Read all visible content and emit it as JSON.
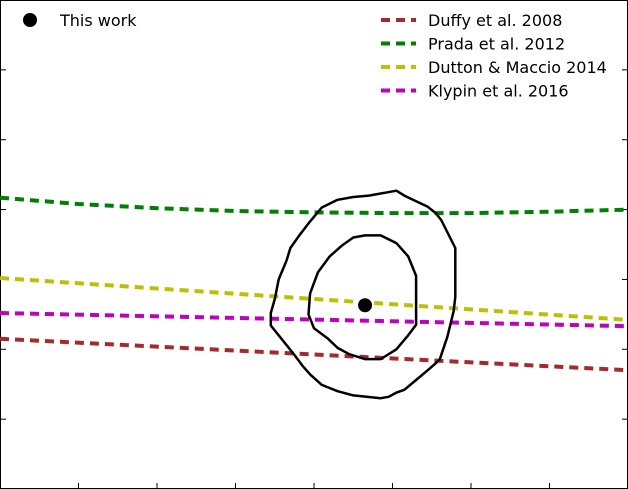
{
  "chart_data": {
    "type": "line",
    "title": "",
    "xlabel": "",
    "ylabel": "",
    "grid": false,
    "legend_placement": "top",
    "x_range": [
      0,
      8
    ],
    "y_range": [
      0,
      7
    ],
    "x_ticks": [
      1,
      2,
      3,
      4,
      5,
      6,
      7
    ],
    "y_ticks": [
      1,
      2,
      3,
      4,
      5,
      6
    ],
    "series": [
      {
        "name": "Duffy et al. 2008",
        "color": "#a52a2a",
        "style": "dashed",
        "x": [
          0,
          8
        ],
        "y": [
          2.15,
          1.7
        ]
      },
      {
        "name": "Prada et al. 2012",
        "color": "#008000",
        "style": "dashed",
        "x": [
          0,
          1,
          2,
          3,
          4,
          5,
          6,
          7,
          8
        ],
        "y": [
          4.17,
          4.08,
          4.02,
          3.98,
          3.96,
          3.95,
          3.95,
          3.97,
          4.0
        ]
      },
      {
        "name": "Dutton & Maccio 2014",
        "color": "#bfbf00",
        "style": "dashed",
        "x": [
          0,
          8
        ],
        "y": [
          3.02,
          2.42
        ]
      },
      {
        "name": "Klypin et al. 2016",
        "color": "#bf00bf",
        "style": "dashed",
        "x": [
          0,
          8
        ],
        "y": [
          2.52,
          2.33
        ]
      }
    ],
    "point": {
      "name": "This work",
      "x": 4.65,
      "y": 2.63,
      "color": "#000000"
    },
    "contours": [
      {
        "level": "inner",
        "x": [
          4.35,
          4.5,
          4.65,
          4.85,
          5.05,
          5.2,
          5.3,
          5.3,
          5.2,
          5.05,
          4.85,
          4.65,
          4.45,
          4.3,
          4.18,
          4.0,
          3.93,
          3.95,
          4.05,
          4.2,
          4.35
        ],
        "y": [
          3.48,
          3.6,
          3.63,
          3.63,
          3.52,
          3.33,
          3.05,
          2.35,
          2.2,
          2.0,
          1.86,
          1.86,
          1.93,
          2.02,
          2.15,
          2.3,
          2.5,
          2.8,
          3.1,
          3.33,
          3.48
        ]
      },
      {
        "level": "outer",
        "x": [
          4.1,
          4.3,
          4.5,
          4.7,
          4.9,
          5.05,
          5.15,
          5.3,
          5.45,
          5.55,
          5.62,
          5.8,
          5.8,
          5.78,
          5.7,
          5.6,
          5.45,
          5.3,
          5.15,
          5.05,
          4.95,
          4.85,
          4.5,
          4.3,
          4.1,
          3.95,
          3.85,
          3.75,
          3.6,
          3.45,
          3.45,
          3.5,
          3.55,
          3.65,
          3.7,
          3.8,
          3.95,
          4.1
        ],
        "y": [
          4.03,
          4.14,
          4.18,
          4.2,
          4.24,
          4.27,
          4.2,
          4.12,
          4.04,
          3.95,
          3.85,
          3.45,
          2.75,
          2.55,
          2.18,
          1.85,
          1.7,
          1.56,
          1.42,
          1.38,
          1.32,
          1.3,
          1.34,
          1.4,
          1.49,
          1.64,
          1.77,
          1.92,
          2.13,
          2.34,
          2.52,
          2.72,
          3.0,
          3.27,
          3.45,
          3.61,
          3.83,
          4.03
        ]
      }
    ]
  }
}
